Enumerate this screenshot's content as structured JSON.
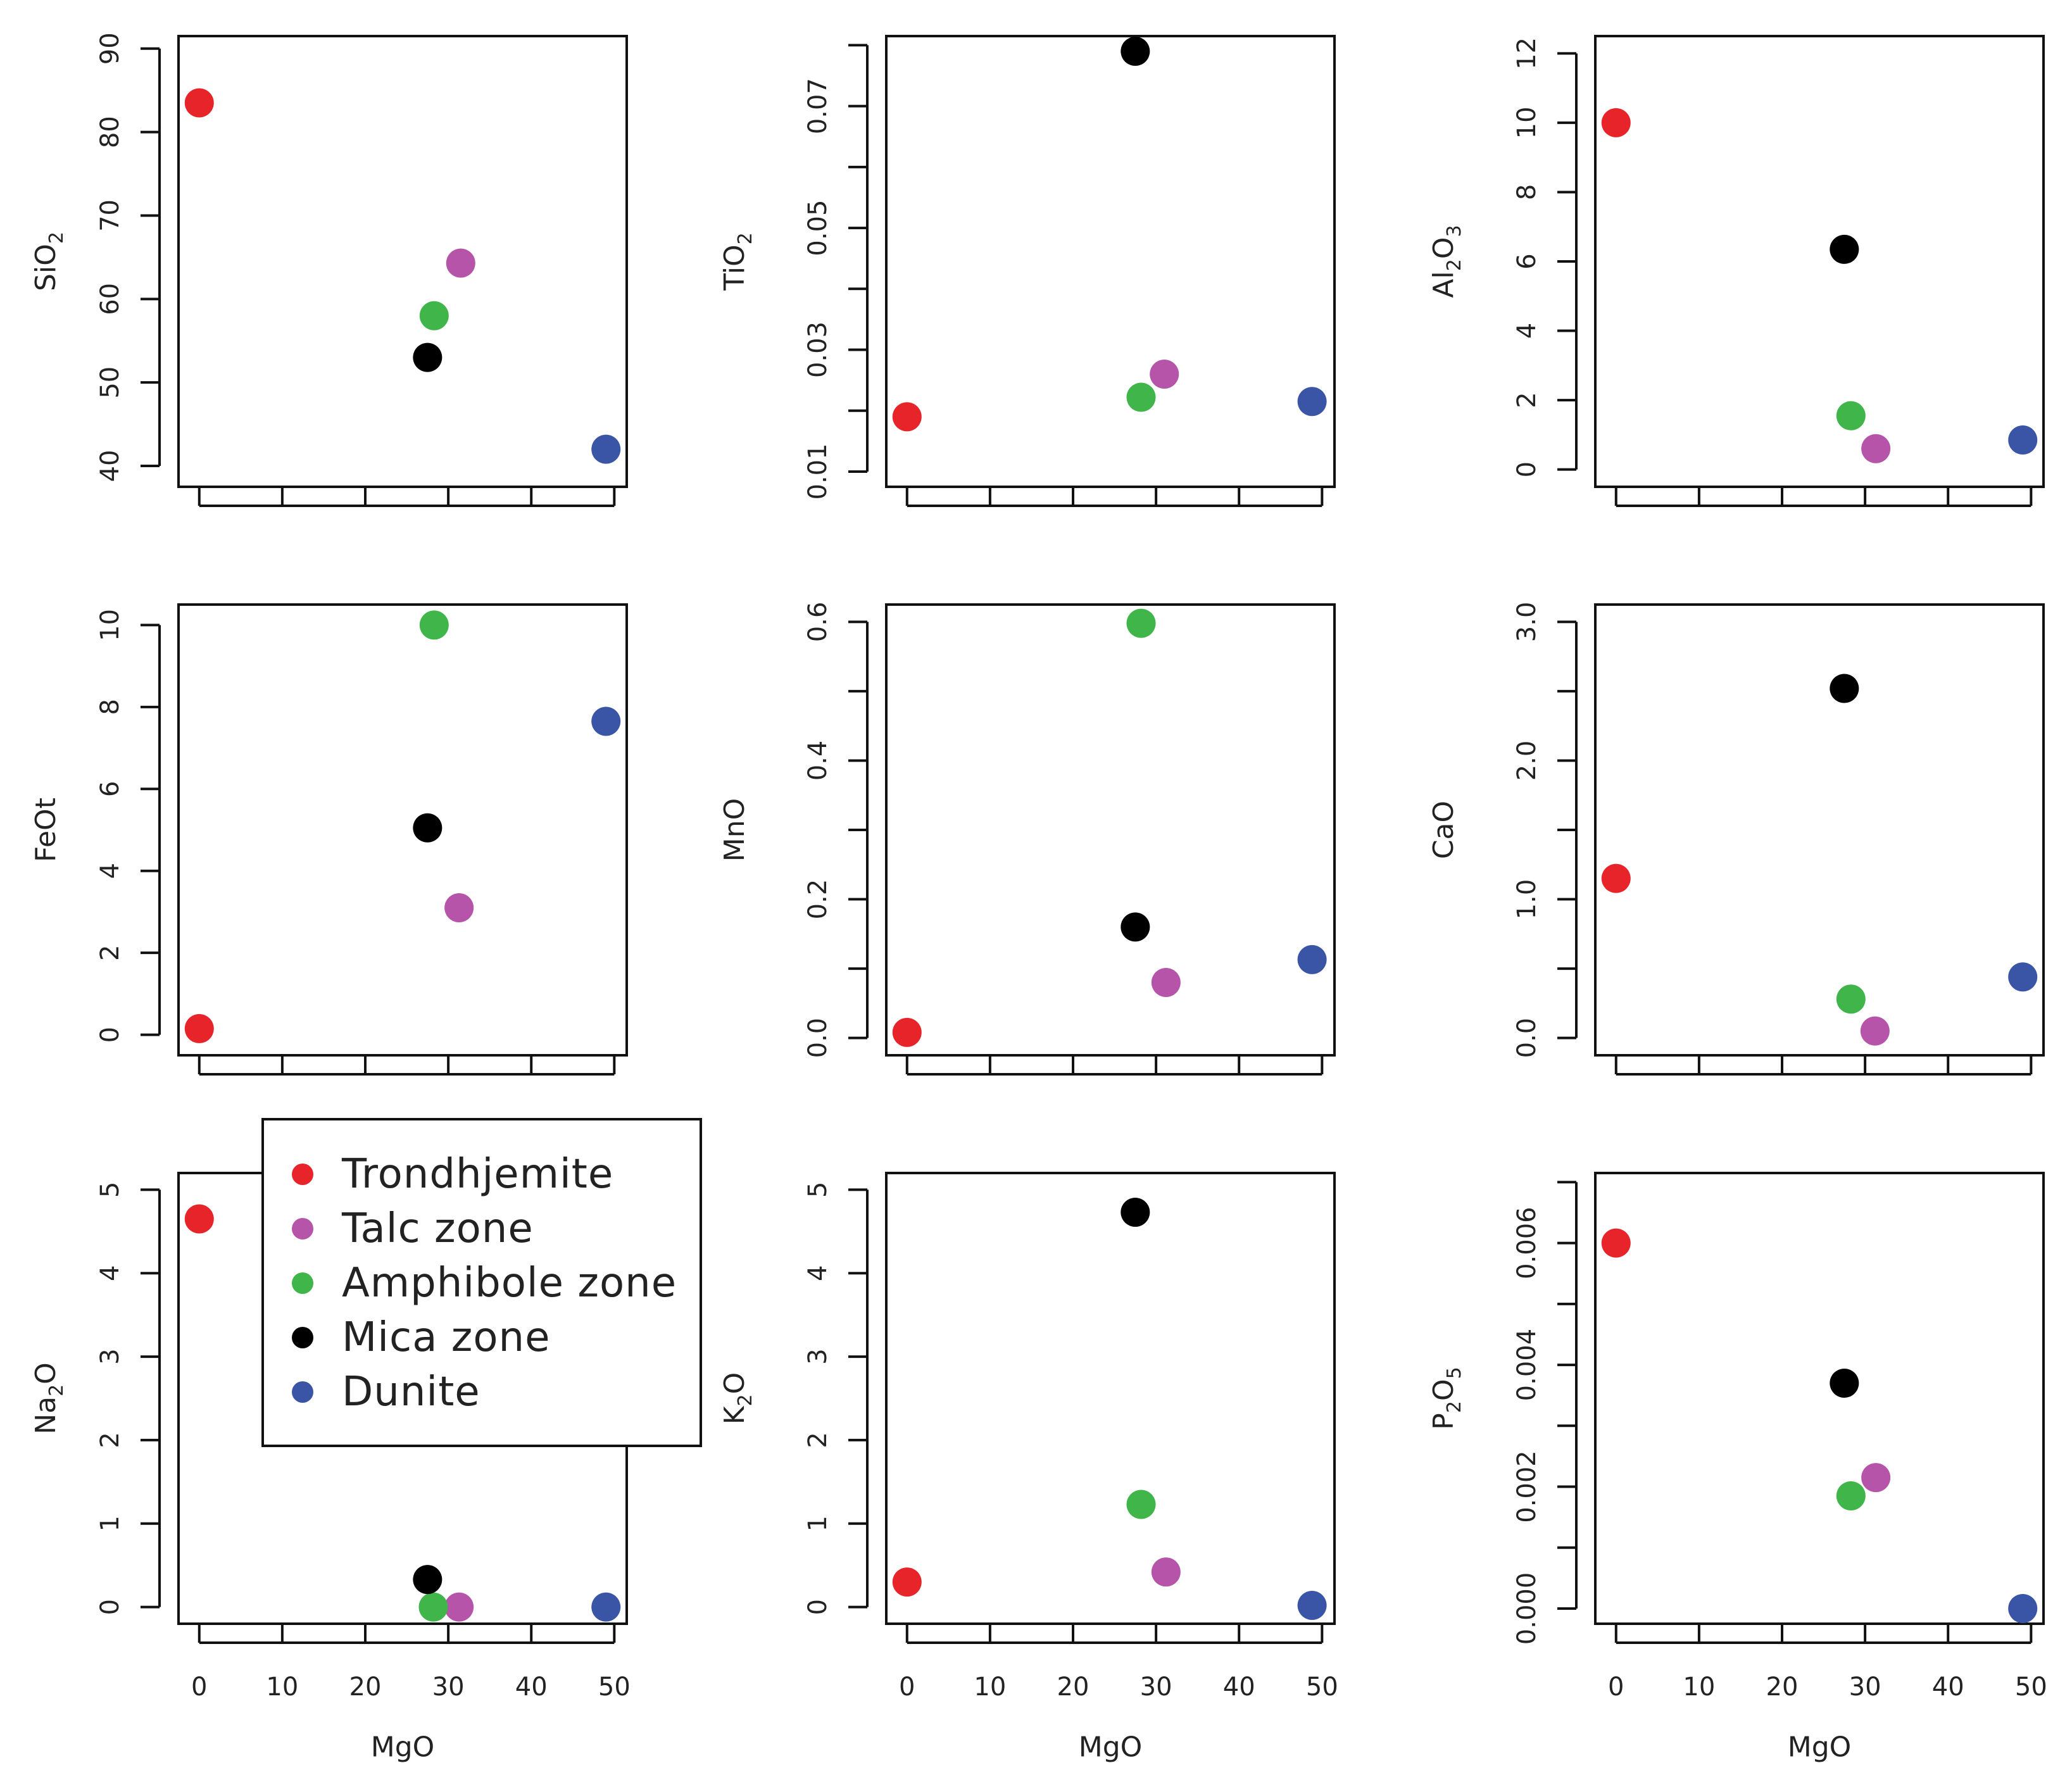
{
  "series_colors": {
    "Trondhjemite": "#e8242b",
    "Talc zone": "#b554a8",
    "Amphibole zone": "#3fb54a",
    "Mica zone": "#000000",
    "Dunite": "#3a55a6"
  },
  "legend": {
    "entries": [
      "Trondhjemite",
      "Talc zone",
      "Amphibole zone",
      "Mica zone",
      "Dunite"
    ]
  },
  "chart_data": [
    {
      "type": "scatter",
      "ylabel": "SiO2",
      "ylabel_parts": [
        [
          "Si",
          "n"
        ],
        [
          "O",
          "n"
        ],
        [
          "2",
          "sub"
        ]
      ],
      "xlabel": "",
      "xlim": [
        -2.5,
        51.5
      ],
      "ylim": [
        37.5,
        91.5
      ],
      "xticks": [
        0,
        10,
        20,
        30,
        40,
        50
      ],
      "xtick_labels": [],
      "yticks": [
        40,
        50,
        60,
        70,
        80,
        90
      ],
      "ytick_labels": [
        "40",
        "50",
        "60",
        "70",
        "80",
        "90"
      ],
      "points": [
        {
          "series": "Trondhjemite",
          "x": 0,
          "y": 83.5
        },
        {
          "series": "Talc zone",
          "x": 31.5,
          "y": 64.3
        },
        {
          "series": "Amphibole zone",
          "x": 28.3,
          "y": 58.0
        },
        {
          "series": "Mica zone",
          "x": 27.5,
          "y": 53.0
        },
        {
          "series": "Dunite",
          "x": 49.0,
          "y": 42.0
        }
      ]
    },
    {
      "type": "scatter",
      "ylabel": "TiO2",
      "ylabel_parts": [
        [
          "Ti",
          "n"
        ],
        [
          "O",
          "n"
        ],
        [
          "2",
          "sub"
        ]
      ],
      "xlabel": "",
      "xlim": [
        -2.5,
        51.5
      ],
      "ylim": [
        0.0075,
        0.0815
      ],
      "xticks": [
        0,
        10,
        20,
        30,
        40,
        50
      ],
      "xtick_labels": [],
      "yticks": [
        0.01,
        0.02,
        0.03,
        0.04,
        0.05,
        0.06,
        0.07,
        0.08
      ],
      "ytick_labels": [
        "0.01",
        "",
        "0.03",
        "",
        "0.05",
        "",
        "0.07",
        ""
      ],
      "points": [
        {
          "series": "Trondhjemite",
          "x": 0,
          "y": 0.019
        },
        {
          "series": "Talc zone",
          "x": 31.0,
          "y": 0.026
        },
        {
          "series": "Amphibole zone",
          "x": 28.2,
          "y": 0.0222
        },
        {
          "series": "Mica zone",
          "x": 27.5,
          "y": 0.079
        },
        {
          "series": "Dunite",
          "x": 48.8,
          "y": 0.0215
        }
      ]
    },
    {
      "type": "scatter",
      "ylabel": "Al2O3",
      "ylabel_parts": [
        [
          "Al",
          "n"
        ],
        [
          "2",
          "sub"
        ],
        [
          "O",
          "n"
        ],
        [
          "3",
          "sub"
        ]
      ],
      "xlabel": "",
      "xlim": [
        -2.5,
        51.5
      ],
      "ylim": [
        -0.5,
        12.5
      ],
      "xticks": [
        0,
        10,
        20,
        30,
        40,
        50
      ],
      "xtick_labels": [],
      "yticks": [
        0,
        2,
        4,
        6,
        8,
        10,
        12
      ],
      "ytick_labels": [
        "0",
        "2",
        "4",
        "6",
        "8",
        "10",
        "12"
      ],
      "points": [
        {
          "series": "Trondhjemite",
          "x": 0,
          "y": 10.0
        },
        {
          "series": "Talc zone",
          "x": 31.3,
          "y": 0.6
        },
        {
          "series": "Amphibole zone",
          "x": 28.3,
          "y": 1.55
        },
        {
          "series": "Mica zone",
          "x": 27.5,
          "y": 6.35
        },
        {
          "series": "Dunite",
          "x": 49.0,
          "y": 0.85
        }
      ]
    },
    {
      "type": "scatter",
      "ylabel": "FeOt",
      "ylabel_parts": [
        [
          "FeOt",
          "n"
        ]
      ],
      "xlabel": "",
      "xlim": [
        -2.5,
        51.5
      ],
      "ylim": [
        -0.5,
        10.5
      ],
      "xticks": [
        0,
        10,
        20,
        30,
        40,
        50
      ],
      "xtick_labels": [],
      "yticks": [
        0,
        2,
        4,
        6,
        8,
        10
      ],
      "ytick_labels": [
        "0",
        "2",
        "4",
        "6",
        "8",
        "10"
      ],
      "points": [
        {
          "series": "Trondhjemite",
          "x": 0,
          "y": 0.15
        },
        {
          "series": "Talc zone",
          "x": 31.3,
          "y": 3.1
        },
        {
          "series": "Amphibole zone",
          "x": 28.3,
          "y": 10.0
        },
        {
          "series": "Mica zone",
          "x": 27.5,
          "y": 5.05
        },
        {
          "series": "Dunite",
          "x": 49.0,
          "y": 7.65
        }
      ]
    },
    {
      "type": "scatter",
      "ylabel": "MnO",
      "ylabel_parts": [
        [
          "MnO",
          "n"
        ]
      ],
      "xlabel": "",
      "xlim": [
        -2.5,
        51.5
      ],
      "ylim": [
        -0.025,
        0.625
      ],
      "xticks": [
        0,
        10,
        20,
        30,
        40,
        50
      ],
      "xtick_labels": [],
      "yticks": [
        0.0,
        0.1,
        0.2,
        0.3,
        0.4,
        0.5,
        0.6
      ],
      "ytick_labels": [
        "0.0",
        "",
        "0.2",
        "",
        "0.4",
        "",
        "0.6"
      ],
      "points": [
        {
          "series": "Trondhjemite",
          "x": 0,
          "y": 0.008
        },
        {
          "series": "Talc zone",
          "x": 31.2,
          "y": 0.08
        },
        {
          "series": "Amphibole zone",
          "x": 28.2,
          "y": 0.598
        },
        {
          "series": "Mica zone",
          "x": 27.5,
          "y": 0.16
        },
        {
          "series": "Dunite",
          "x": 48.8,
          "y": 0.113
        }
      ]
    },
    {
      "type": "scatter",
      "ylabel": "CaO",
      "ylabel_parts": [
        [
          "CaO",
          "n"
        ]
      ],
      "xlabel": "",
      "xlim": [
        -2.5,
        51.5
      ],
      "ylim": [
        -0.125,
        3.125
      ],
      "xticks": [
        0,
        10,
        20,
        30,
        40,
        50
      ],
      "xtick_labels": [],
      "yticks": [
        0.0,
        0.5,
        1.0,
        1.5,
        2.0,
        2.5,
        3.0
      ],
      "ytick_labels": [
        "0.0",
        "",
        "1.0",
        "",
        "2.0",
        "",
        "3.0"
      ],
      "points": [
        {
          "series": "Trondhjemite",
          "x": 0,
          "y": 1.15
        },
        {
          "series": "Talc zone",
          "x": 31.2,
          "y": 0.05
        },
        {
          "series": "Amphibole zone",
          "x": 28.3,
          "y": 0.28
        },
        {
          "series": "Mica zone",
          "x": 27.5,
          "y": 2.52
        },
        {
          "series": "Dunite",
          "x": 49.0,
          "y": 0.44
        }
      ]
    },
    {
      "type": "scatter",
      "ylabel": "Na2O",
      "ylabel_parts": [
        [
          "Na",
          "n"
        ],
        [
          "2",
          "sub"
        ],
        [
          "O",
          "n"
        ]
      ],
      "xlabel": "MgO",
      "xlim": [
        -2.5,
        51.5
      ],
      "ylim": [
        -0.2,
        5.2
      ],
      "xticks": [
        0,
        10,
        20,
        30,
        40,
        50
      ],
      "xtick_labels": [
        "0",
        "10",
        "20",
        "30",
        "40",
        "50"
      ],
      "yticks": [
        0,
        1,
        2,
        3,
        4,
        5
      ],
      "ytick_labels": [
        "0",
        "1",
        "2",
        "3",
        "4",
        "5"
      ],
      "points": [
        {
          "series": "Trondhjemite",
          "x": 0,
          "y": 4.65
        },
        {
          "series": "Talc zone",
          "x": 31.3,
          "y": 0.0
        },
        {
          "series": "Amphibole zone",
          "x": 28.2,
          "y": 0.0
        },
        {
          "series": "Mica zone",
          "x": 27.5,
          "y": 0.33
        },
        {
          "series": "Dunite",
          "x": 49.0,
          "y": 0.0
        }
      ]
    },
    {
      "type": "scatter",
      "ylabel": "K2O",
      "ylabel_parts": [
        [
          "K",
          "n"
        ],
        [
          "2",
          "sub"
        ],
        [
          "O",
          "n"
        ]
      ],
      "xlabel": "MgO",
      "xlim": [
        -2.5,
        51.5
      ],
      "ylim": [
        -0.2,
        5.2
      ],
      "xticks": [
        0,
        10,
        20,
        30,
        40,
        50
      ],
      "xtick_labels": [
        "0",
        "10",
        "20",
        "30",
        "40",
        "50"
      ],
      "yticks": [
        0,
        1,
        2,
        3,
        4,
        5
      ],
      "ytick_labels": [
        "0",
        "1",
        "2",
        "3",
        "4",
        "5"
      ],
      "points": [
        {
          "series": "Trondhjemite",
          "x": 0,
          "y": 0.3
        },
        {
          "series": "Talc zone",
          "x": 31.2,
          "y": 0.42
        },
        {
          "series": "Amphibole zone",
          "x": 28.2,
          "y": 1.23
        },
        {
          "series": "Mica zone",
          "x": 27.5,
          "y": 4.73
        },
        {
          "series": "Dunite",
          "x": 48.8,
          "y": 0.02
        }
      ]
    },
    {
      "type": "scatter",
      "ylabel": "P2O5",
      "ylabel_parts": [
        [
          "P",
          "n"
        ],
        [
          "2",
          "sub"
        ],
        [
          "O",
          "n"
        ],
        [
          "5",
          "sub"
        ]
      ],
      "xlabel": "MgO",
      "xlim": [
        -2.5,
        51.5
      ],
      "ylim": [
        -0.00025,
        0.00715
      ],
      "xticks": [
        0,
        10,
        20,
        30,
        40,
        50
      ],
      "xtick_labels": [
        "0",
        "10",
        "20",
        "30",
        "40",
        "50"
      ],
      "yticks": [
        0.0,
        0.001,
        0.002,
        0.003,
        0.004,
        0.005,
        0.006,
        0.007
      ],
      "ytick_labels": [
        "0.000",
        "",
        "0.002",
        "",
        "0.004",
        "",
        "0.006",
        ""
      ],
      "points": [
        {
          "series": "Trondhjemite",
          "x": 0,
          "y": 0.006
        },
        {
          "series": "Talc zone",
          "x": 31.3,
          "y": 0.00215
        },
        {
          "series": "Amphibole zone",
          "x": 28.3,
          "y": 0.00185
        },
        {
          "series": "Mica zone",
          "x": 27.5,
          "y": 0.0037
        },
        {
          "series": "Dunite",
          "x": 49.0,
          "y": 0.0
        }
      ]
    }
  ]
}
